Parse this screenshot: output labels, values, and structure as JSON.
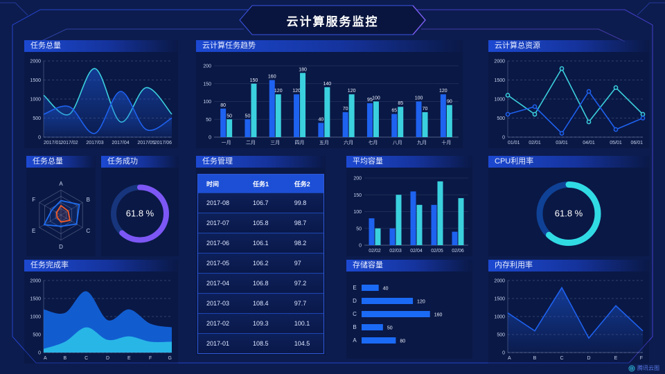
{
  "header": {
    "title": "云计算服务监控"
  },
  "footer": {
    "logo": "腾讯云图"
  },
  "colors": {
    "background": "#0c1c4e",
    "blue": "#1e62f0",
    "cyan": "#3bd0de",
    "purple": "#7d57f5",
    "orange": "#f25a28",
    "title_bar": "#1c49d2",
    "frame_line": "#2b4ae0"
  },
  "panels": {
    "tasks_total": {
      "title": "任务总量"
    },
    "task_trend": {
      "title": "云计算任务趋势"
    },
    "cloud_resources": {
      "title": "云计算总资源"
    },
    "tasks_radar": {
      "title": "任务总量"
    },
    "task_success": {
      "title": "任务成功"
    },
    "task_manage": {
      "title": "任务管理"
    },
    "avg_capacity": {
      "title": "平均容量"
    },
    "cpu_usage": {
      "title": "CPU利用率"
    },
    "task_completion": {
      "title": "任务完成率"
    },
    "storage": {
      "title": "存储容量"
    },
    "memory": {
      "title": "内存利用率"
    }
  },
  "table": {
    "headers": [
      "时间",
      "任务1",
      "任务2"
    ],
    "rows": [
      [
        "2017-08",
        "106.7",
        "99.8"
      ],
      [
        "2017-07",
        "105.8",
        "98.7"
      ],
      [
        "2017-06",
        "106.1",
        "98.2"
      ],
      [
        "2017-05",
        "106.2",
        "97"
      ],
      [
        "2017-04",
        "106.8",
        "97.2"
      ],
      [
        "2017-03",
        "108.4",
        "97.7"
      ],
      [
        "2017-02",
        "109.3",
        "100.1"
      ],
      [
        "2017-01",
        "108.5",
        "104.5"
      ]
    ]
  },
  "chart_data": [
    {
      "id": "tasks-total",
      "type": "area",
      "title": "任务总量",
      "smooth": true,
      "grid": "dashed",
      "x": [
        "2017/01",
        "2017/02",
        "2017/03",
        "2017/04",
        "2017/05",
        "2017/06"
      ],
      "ylim": [
        0,
        2000
      ],
      "yticks": [
        0,
        500,
        1000,
        1500,
        2000
      ],
      "series": [
        {
          "name": "series-cyan",
          "color": "#3bd0de",
          "area": "#1b58d8",
          "values": [
            1100,
            600,
            1800,
            400,
            1300,
            600
          ]
        },
        {
          "name": "series-blue",
          "color": "#1e62f0",
          "area": "#1b58d8",
          "values": [
            600,
            800,
            100,
            1200,
            200,
            500
          ]
        }
      ]
    },
    {
      "id": "task-trend",
      "type": "bar",
      "title": "云计算任务趋势",
      "grid": "solid",
      "labels": true,
      "categories": [
        "一月",
        "二月",
        "三月",
        "四月",
        "五月",
        "六月",
        "七月",
        "八月",
        "九月",
        "十月"
      ],
      "ylim": [
        0,
        200
      ],
      "yticks": [
        0,
        50,
        100,
        150,
        200
      ],
      "series": [
        {
          "name": "series-blue",
          "color": "#1e62f0",
          "values": [
            80,
            50,
            160,
            120,
            40,
            70,
            95,
            65,
            100,
            120
          ]
        },
        {
          "name": "series-cyan",
          "color": "#3bd0de",
          "values": [
            50,
            150,
            120,
            180,
            140,
            120,
            100,
            85,
            70,
            90
          ]
        }
      ]
    },
    {
      "id": "cloud-resources",
      "type": "line",
      "title": "云计算总资源",
      "smooth": false,
      "grid": "dashed",
      "markers": true,
      "x": [
        "01/01",
        "02/01",
        "03/01",
        "04/01",
        "05/01",
        "06/01"
      ],
      "ylim": [
        0,
        2000
      ],
      "yticks": [
        0,
        500,
        1000,
        1500,
        2000
      ],
      "series": [
        {
          "name": "series-cyan",
          "color": "#3bd0de",
          "values": [
            1100,
            600,
            1800,
            400,
            1300,
            600
          ]
        },
        {
          "name": "series-blue",
          "color": "#1e62f0",
          "values": [
            600,
            800,
            100,
            1200,
            200,
            500
          ]
        }
      ]
    },
    {
      "id": "tasks-radar",
      "type": "radar",
      "title": "任务总量",
      "axes": [
        "A",
        "B",
        "C",
        "D",
        "E",
        "F"
      ],
      "max": 100,
      "series": [
        {
          "name": "blue-polygon",
          "color": "#1f6df2",
          "values": [
            58,
            85,
            72,
            45,
            78,
            42
          ]
        },
        {
          "name": "orange-polygon",
          "color": "#f25a28",
          "values": [
            38,
            33,
            42,
            28,
            18,
            20
          ]
        }
      ]
    },
    {
      "id": "task-success",
      "type": "gauge",
      "title": "任务成功",
      "value": 61.8,
      "unit": "%",
      "color": "#7d57f5",
      "track": "#17357c",
      "radius": 38,
      "stroke": 8
    },
    {
      "id": "avg-capacity",
      "type": "bar",
      "title": "平均容量",
      "grid": "solid",
      "labels": false,
      "categories": [
        "02/02",
        "02/03",
        "02/04",
        "02/05",
        "02/06"
      ],
      "ylim": [
        0,
        200
      ],
      "yticks": [
        0,
        50,
        100,
        150,
        200
      ],
      "series": [
        {
          "name": "series-blue",
          "color": "#1e62f0",
          "values": [
            80,
            50,
            160,
            120,
            40
          ]
        },
        {
          "name": "series-cyan",
          "color": "#3bd0de",
          "values": [
            50,
            150,
            120,
            190,
            140
          ]
        }
      ]
    },
    {
      "id": "cpu-usage",
      "type": "gauge",
      "title": "CPU利用率",
      "value": 61.8,
      "unit": "%",
      "color": "#31dbe4",
      "track": "#0f4296",
      "radius": 42,
      "stroke": 9
    },
    {
      "id": "task-completion",
      "type": "stacked-area",
      "title": "任务完成率",
      "smooth": true,
      "grid": "dashed",
      "x": [
        "A",
        "B",
        "C",
        "D",
        "E",
        "F",
        "G"
      ],
      "ylim": [
        0,
        2000
      ],
      "yticks": [
        0,
        500,
        1000,
        1500,
        2000
      ],
      "series": [
        {
          "name": "blue-area",
          "fill": "#1261d8",
          "values": [
            1200,
            1100,
            1700,
            900,
            1200,
            800,
            700
          ]
        },
        {
          "name": "cyan-area",
          "fill": "#2abbe8",
          "values": [
            100,
            300,
            700,
            350,
            450,
            300,
            300
          ]
        }
      ]
    },
    {
      "id": "storage",
      "type": "hbar",
      "title": "存储容量",
      "xmax": 175,
      "categories": [
        "E",
        "D",
        "C",
        "B",
        "A"
      ],
      "values": [
        40,
        120,
        160,
        50,
        80
      ],
      "color": "#1b6af5"
    },
    {
      "id": "memory",
      "type": "line",
      "title": "内存利用率",
      "smooth": false,
      "grid": "dashed",
      "markers": false,
      "x": [
        "A",
        "B",
        "C",
        "D",
        "E",
        "F"
      ],
      "ylim": [
        0,
        2000
      ],
      "yticks": [
        0,
        500,
        1000,
        1500,
        2000
      ],
      "series": [
        {
          "name": "series-blue",
          "color": "#1e62f0",
          "area": "#1b58d8",
          "values": [
            1100,
            600,
            1800,
            400,
            1300,
            600
          ]
        }
      ]
    }
  ]
}
